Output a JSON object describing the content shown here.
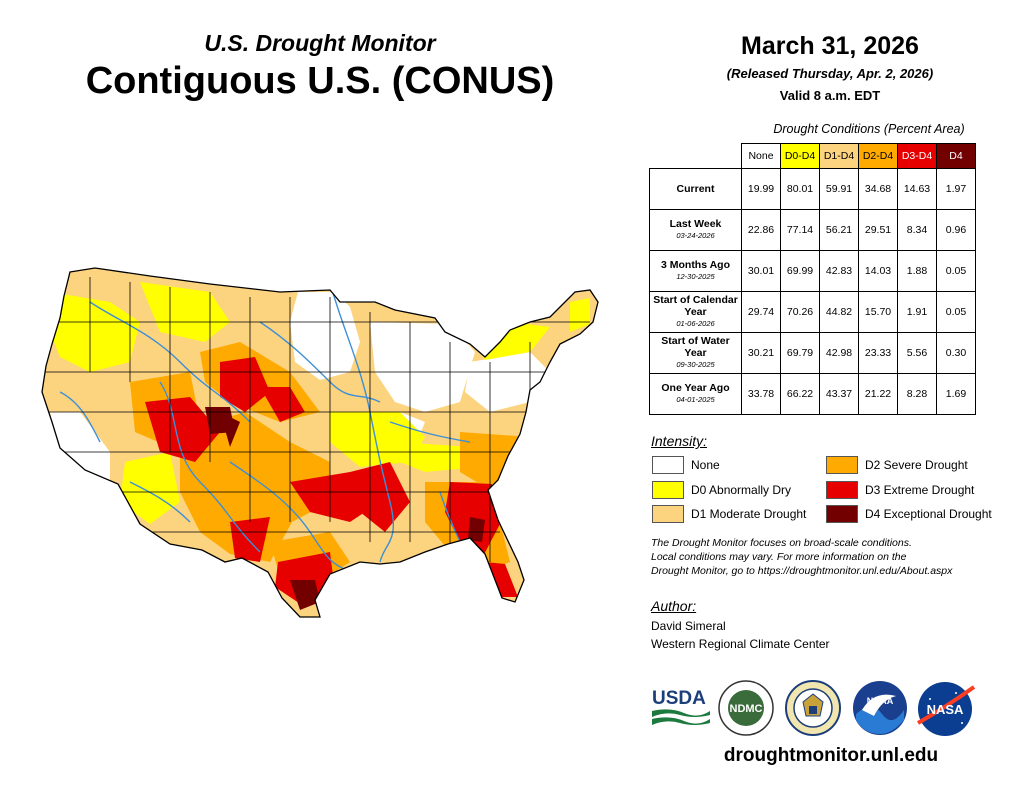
{
  "header": {
    "title_line1": "U.S. Drought Monitor",
    "title_line2": "Contiguous U.S. (CONUS)",
    "date": "March 31, 2026",
    "released": "(Released Thursday, Apr. 2, 2026)",
    "valid": "Valid 8 a.m. EDT"
  },
  "table": {
    "caption": "Drought Conditions (Percent Area)",
    "columns": [
      {
        "label": "None",
        "bg": "#ffffff",
        "fg": "#000000"
      },
      {
        "label": "D0-D4",
        "bg": "#ffff00",
        "fg": "#000000"
      },
      {
        "label": "D1-D4",
        "bg": "#fcd37f",
        "fg": "#000000"
      },
      {
        "label": "D2-D4",
        "bg": "#ffaa00",
        "fg": "#000000"
      },
      {
        "label": "D3-D4",
        "bg": "#e60000",
        "fg": "#ffffff"
      },
      {
        "label": "D4",
        "bg": "#730000",
        "fg": "#ffffff"
      }
    ],
    "rows": [
      {
        "label": "Current",
        "date": "",
        "values": [
          "19.99",
          "80.01",
          "59.91",
          "34.68",
          "14.63",
          "1.97"
        ]
      },
      {
        "label": "Last Week",
        "date": "03-24-2026",
        "values": [
          "22.86",
          "77.14",
          "56.21",
          "29.51",
          "8.34",
          "0.96"
        ]
      },
      {
        "label": "3 Months Ago",
        "date": "12-30-2025",
        "values": [
          "30.01",
          "69.99",
          "42.83",
          "14.03",
          "1.88",
          "0.05"
        ]
      },
      {
        "label": "Start of Calendar Year",
        "date": "01-06-2026",
        "values": [
          "29.74",
          "70.26",
          "44.82",
          "15.70",
          "1.91",
          "0.05"
        ]
      },
      {
        "label": "Start of Water Year",
        "date": "09-30-2025",
        "values": [
          "30.21",
          "69.79",
          "42.98",
          "23.33",
          "5.56",
          "0.30"
        ]
      },
      {
        "label": "One Year Ago",
        "date": "04-01-2025",
        "values": [
          "33.78",
          "66.22",
          "43.37",
          "21.22",
          "8.28",
          "1.69"
        ]
      }
    ]
  },
  "intensity": {
    "heading": "Intensity:",
    "items": [
      {
        "label": "None",
        "color": "#ffffff"
      },
      {
        "label": "D0 Abnormally Dry",
        "color": "#ffff00"
      },
      {
        "label": "D1 Moderate Drought",
        "color": "#fcd37f"
      },
      {
        "label": "D2 Severe Drought",
        "color": "#ffaa00"
      },
      {
        "label": "D3 Extreme Drought",
        "color": "#e60000"
      },
      {
        "label": "D4 Exceptional Drought",
        "color": "#730000"
      }
    ]
  },
  "note": {
    "line1": "The Drought Monitor focuses on broad-scale conditions.",
    "line2": "Local conditions may vary. For more information on the",
    "line3": "Drought Monitor, go to https://droughtmonitor.unl.edu/About.aspx"
  },
  "author": {
    "heading": "Author:",
    "name": "David Simeral",
    "org": "Western Regional Climate Center"
  },
  "logos": {
    "usda": "USDA",
    "ndmc": "NDMC",
    "noaa": "NOAA",
    "nasa": "NASA",
    "commerce": "commerce-seal-icon"
  },
  "footer": {
    "url": "droughtmonitor.unl.edu"
  }
}
